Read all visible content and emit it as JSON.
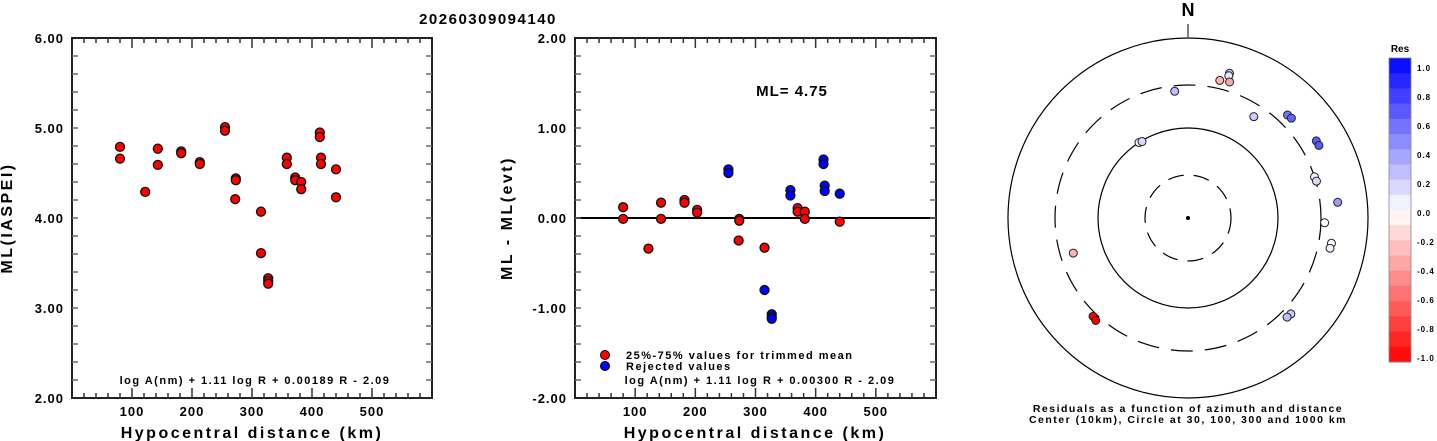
{
  "title": "20260309094140",
  "chart_data": [
    {
      "type": "scatter",
      "id": "magnitude_vs_distance",
      "xlabel": "Hypocentral distance (km)",
      "ylabel": "ML(IASPEI)",
      "xlim": [
        0,
        600
      ],
      "ylim": [
        2.0,
        6.0
      ],
      "xticks": [
        100,
        200,
        300,
        400,
        500
      ],
      "xtick_labels": [
        "100",
        "200",
        "300",
        "400",
        "500"
      ],
      "yticks": [
        2.0,
        3.0,
        4.0,
        5.0,
        6.0
      ],
      "ytick_labels": [
        "2.00",
        "3.00",
        "4.00",
        "5.00",
        "6.00"
      ],
      "formula": "log A(nm) + 1.11 log R + 0.00189 R - 2.09",
      "series": [
        {
          "name": "stations",
          "color": "#ff0000",
          "points": [
            [
              80,
              4.79
            ],
            [
              80,
              4.66
            ],
            [
              122,
              4.29
            ],
            [
              143,
              4.77
            ],
            [
              143,
              4.59
            ],
            [
              182,
              4.74
            ],
            [
              182,
              4.72
            ],
            [
              213,
              4.62
            ],
            [
              213,
              4.6
            ],
            [
              255,
              5.01
            ],
            [
              255,
              4.97
            ],
            [
              273,
              4.44
            ],
            [
              273,
              4.42
            ],
            [
              272,
              4.21
            ],
            [
              315,
              4.07
            ],
            [
              315,
              3.61
            ],
            [
              327,
              3.33
            ],
            [
              327,
              3.3
            ],
            [
              327,
              3.27
            ],
            [
              358,
              4.67
            ],
            [
              358,
              4.6
            ],
            [
              372,
              4.45
            ],
            [
              372,
              4.42
            ],
            [
              382,
              4.4
            ],
            [
              382,
              4.32
            ],
            [
              413,
              4.95
            ],
            [
              413,
              4.9
            ],
            [
              415,
              4.67
            ],
            [
              415,
              4.6
            ],
            [
              440,
              4.54
            ],
            [
              440,
              4.23
            ]
          ]
        }
      ]
    },
    {
      "type": "scatter",
      "id": "residual_vs_distance",
      "xlabel": "Hypocentral distance (km)",
      "ylabel": "ML - ML(evt)",
      "xlim": [
        0,
        600
      ],
      "ylim": [
        -2.0,
        2.0
      ],
      "xticks": [
        100,
        200,
        300,
        400,
        500
      ],
      "xtick_labels": [
        "100",
        "200",
        "300",
        "400",
        "500"
      ],
      "yticks": [
        -2.0,
        -1.0,
        0.0,
        1.0,
        2.0
      ],
      "ytick_labels": [
        "-2.00",
        "-1.00",
        "0.00",
        "1.00",
        "2.00"
      ],
      "annotation": "ML= 4.75",
      "formula": "log A(nm) + 1.11 log R + 0.00300 R - 2.09",
      "zero_line": true,
      "legend": {
        "placement": "bottom-left",
        "entries": [
          {
            "label": "25%-75% values for trimmed mean",
            "color": "#ff0000"
          },
          {
            "label": "Rejected values",
            "color": "#0000ff"
          }
        ]
      },
      "series": [
        {
          "name": "25%-75% values for trimmed mean",
          "color": "#ff0000",
          "points": [
            [
              80,
              0.12
            ],
            [
              80,
              -0.01
            ],
            [
              122,
              -0.34
            ],
            [
              143,
              0.17
            ],
            [
              143,
              -0.01
            ],
            [
              182,
              0.2
            ],
            [
              182,
              0.17
            ],
            [
              203,
              0.09
            ],
            [
              203,
              0.06
            ],
            [
              273,
              -0.01
            ],
            [
              273,
              -0.03
            ],
            [
              272,
              -0.25
            ],
            [
              315,
              -0.33
            ],
            [
              370,
              0.11
            ],
            [
              370,
              0.07
            ],
            [
              382,
              0.07
            ],
            [
              382,
              -0.01
            ],
            [
              440,
              -0.04
            ]
          ]
        },
        {
          "name": "Rejected values",
          "color": "#0000ff",
          "points": [
            [
              255,
              0.54
            ],
            [
              255,
              0.5
            ],
            [
              315,
              -0.8
            ],
            [
              327,
              -1.07
            ],
            [
              327,
              -1.1
            ],
            [
              327,
              -1.12
            ],
            [
              358,
              0.31
            ],
            [
              358,
              0.25
            ],
            [
              413,
              0.65
            ],
            [
              413,
              0.6
            ],
            [
              415,
              0.36
            ],
            [
              415,
              0.3
            ],
            [
              440,
              0.27
            ]
          ]
        }
      ]
    },
    {
      "type": "scatter",
      "id": "residual_azimuth_polar",
      "north_label": "N",
      "caption_line1": "Residuals as a function of azimuth and distance",
      "caption_line2": "Center (10km), Circle at 30, 100, 300 and 1000 km",
      "rings_km": [
        {
          "km": 30,
          "style": "dashed"
        },
        {
          "km": 100,
          "style": "solid"
        },
        {
          "km": 300,
          "style": "dashed"
        },
        {
          "km": 1000,
          "style": "solid"
        }
      ],
      "colorbar": {
        "title": "Res",
        "range": [
          -1.0,
          1.0
        ],
        "tick_labels": [
          "1.0",
          "0.8",
          "0.6",
          "0.4",
          "0.2",
          "0.0",
          "-0.2",
          "-0.4",
          "-0.6",
          "-0.8",
          "-1.0"
        ],
        "positive_color": "#0000ff",
        "negative_color": "#ff0000",
        "neutral_color": "#ffffff"
      },
      "points": [
        {
          "az": 16,
          "dist_km": 470,
          "res": 0.25
        },
        {
          "az": 16,
          "dist_km": 440,
          "res": 0.1
        },
        {
          "az": 13,
          "dist_km": 370,
          "res": -0.3
        },
        {
          "az": 17,
          "dist_km": 380,
          "res": -0.35
        },
        {
          "az": 354,
          "dist_km": 260,
          "res": 0.25
        },
        {
          "az": 33,
          "dist_km": 220,
          "res": 0.2
        },
        {
          "az": 44,
          "dist_km": 390,
          "res": 0.55
        },
        {
          "az": 46,
          "dist_km": 395,
          "res": 0.6
        },
        {
          "az": 59,
          "dist_km": 460,
          "res": 0.65
        },
        {
          "az": 61,
          "dist_km": 460,
          "res": 0.65
        },
        {
          "az": 72,
          "dist_km": 300,
          "res": 0.05
        },
        {
          "az": 74,
          "dist_km": 305,
          "res": 0.15
        },
        {
          "az": 84,
          "dist_km": 470,
          "res": 0.4
        },
        {
          "az": 92,
          "dist_km": 330,
          "res": 0.0
        },
        {
          "az": 100,
          "dist_km": 415,
          "res": 0.0
        },
        {
          "az": 102,
          "dist_km": 410,
          "res": 0.05
        },
        {
          "az": 133,
          "dist_km": 365,
          "res": 0.2
        },
        {
          "az": 135,
          "dist_km": 360,
          "res": 0.25
        },
        {
          "az": 327,
          "dist_km": 100,
          "res": 0.05
        },
        {
          "az": 329,
          "dist_km": 98,
          "res": 0.15
        },
        {
          "az": 253,
          "dist_km": 215,
          "res": -0.3
        },
        {
          "az": 224,
          "dist_km": 330,
          "res": -1.0
        },
        {
          "az": 222,
          "dist_km": 340,
          "res": -1.0
        }
      ]
    }
  ]
}
